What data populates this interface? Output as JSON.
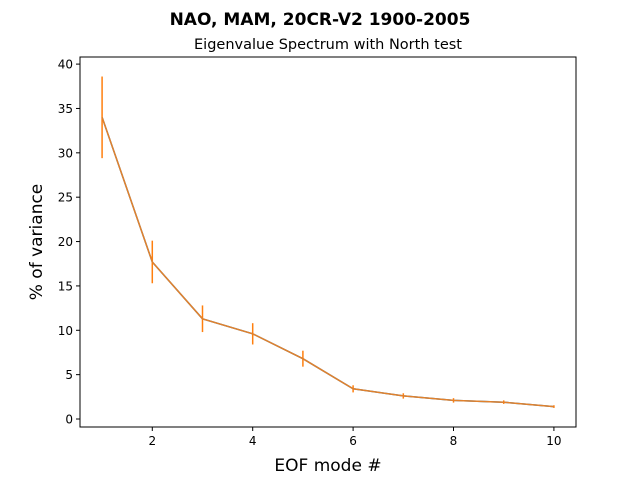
{
  "chart_data": {
    "type": "line",
    "title": "NAO, MAM, 20CR-V2 1900-2005",
    "subtitle": "Eigenvalue Spectrum with North test",
    "xlabel": "EOF mode #",
    "ylabel": "% of variance",
    "xlim": [
      0.56,
      10.44
    ],
    "ylim": [
      -0.9,
      40.8
    ],
    "xticks": [
      2,
      4,
      6,
      8,
      10
    ],
    "yticks": [
      0,
      5,
      10,
      15,
      20,
      25,
      30,
      35,
      40
    ],
    "grid": false,
    "colors": {
      "line": "#1f77b4",
      "errorbar": "#ff7f0e",
      "overlay": "#e2812c"
    },
    "series": [
      {
        "x": [
          1,
          2,
          3,
          4,
          5,
          6,
          7,
          8,
          9,
          10
        ],
        "values": [
          34.0,
          17.7,
          11.3,
          9.6,
          6.8,
          3.4,
          2.6,
          2.1,
          1.9,
          1.4
        ],
        "errors": [
          4.6,
          2.4,
          1.5,
          1.2,
          0.9,
          0.4,
          0.3,
          0.25,
          0.2,
          0.15
        ]
      }
    ]
  }
}
